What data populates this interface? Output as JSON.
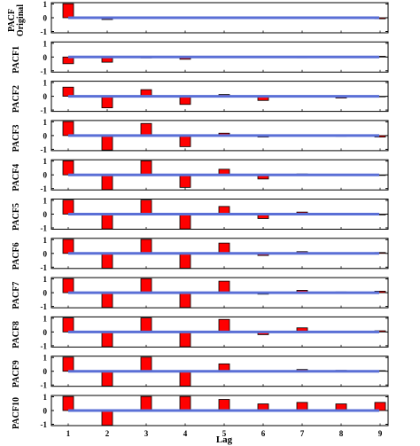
{
  "chart_data": {
    "type": "bar",
    "xlabel": "Lag",
    "categories": [
      "1",
      "2",
      "3",
      "4",
      "5",
      "6",
      "7",
      "8",
      "9"
    ],
    "yticks": [
      "1",
      "0",
      "-1"
    ],
    "ylim": [
      -1,
      1
    ],
    "colors": {
      "bar_fill": "#ff0000",
      "bar_edge": "#000000",
      "zero_line": "#5a6fd6"
    },
    "panels": [
      {
        "label": "PACF Original",
        "values": [
          0.95,
          -0.12,
          -0.03,
          -0.02,
          -0.06,
          -0.04,
          -0.03,
          -0.04,
          -0.07
        ]
      },
      {
        "label": "PACF1",
        "values": [
          -0.45,
          -0.35,
          -0.06,
          -0.15,
          -0.04,
          -0.03,
          -0.05,
          -0.04,
          0.05
        ]
      },
      {
        "label": "PACF2",
        "values": [
          0.62,
          -0.78,
          0.45,
          -0.55,
          0.12,
          -0.28,
          -0.02,
          -0.12,
          -0.03
        ]
      },
      {
        "label": "PACF3",
        "values": [
          0.95,
          -0.98,
          0.82,
          -0.75,
          0.16,
          -0.1,
          0.04,
          -0.05,
          -0.1
        ]
      },
      {
        "label": "PACF4",
        "values": [
          0.95,
          -1.0,
          0.95,
          -0.85,
          0.38,
          -0.28,
          0.06,
          -0.05,
          -0.04
        ]
      },
      {
        "label": "PACF5",
        "values": [
          0.95,
          -1.0,
          0.95,
          -1.0,
          0.52,
          -0.3,
          0.14,
          -0.02,
          -0.05
        ]
      },
      {
        "label": "PACF6",
        "values": [
          0.95,
          -1.0,
          0.95,
          -1.0,
          0.7,
          -0.14,
          0.12,
          -0.04,
          0.06
        ]
      },
      {
        "label": "PACF7",
        "values": [
          0.95,
          -1.0,
          0.95,
          -1.0,
          0.78,
          -0.1,
          0.16,
          0.05,
          0.1
        ]
      },
      {
        "label": "PACF8",
        "values": [
          0.95,
          -1.0,
          0.95,
          -1.0,
          0.85,
          -0.18,
          0.28,
          0.04,
          0.08
        ]
      },
      {
        "label": "PACF9",
        "values": [
          0.95,
          -1.0,
          0.95,
          -1.0,
          0.5,
          -0.05,
          0.12,
          0.06,
          0.04
        ]
      },
      {
        "label": "PACF10",
        "values": [
          0.95,
          -1.0,
          0.95,
          0.95,
          0.75,
          0.45,
          0.55,
          0.45,
          0.55
        ]
      }
    ]
  }
}
